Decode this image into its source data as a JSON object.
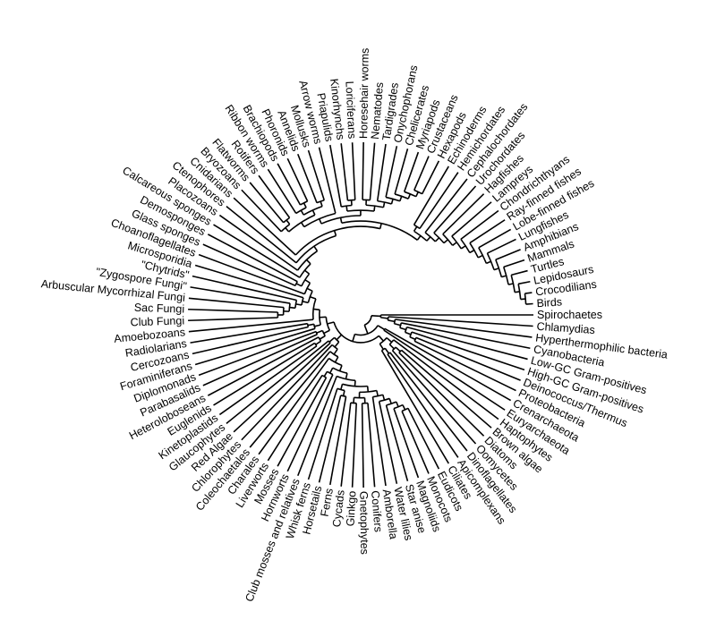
{
  "tree": [
    [
      "Spirochaetes",
      [
        "Chlamydias",
        [
          "Hyperthermophilic bacteria",
          [
            "Cyanobacteria",
            [
              "Low-GC Gram-positives",
              [
                "High-GC Gram-positives",
                [
                  "Deinococcus/Thermus",
                  "Proteobacteria"
                ]
              ]
            ]
          ]
        ]
      ]
    ],
    [
      [
        "Crenarchaeota",
        "Euryarchaeota"
      ],
      [
        [
          [
            "Haptophytes",
            [
              [
                "Brown algae",
                "Diatoms"
              ],
              "Oomycetes"
            ]
          ],
          [
            [
              "Dinoflagellates",
              "Apicomplexans"
            ],
            "Ciliates"
          ]
        ],
        [
          [
            [
              [
                [
                  [
                    [
                      [
                        [
                          [
                            [
                              [
                                [
                                  "Eudicots",
                                  "Monocots"
                                ],
                                "Magnoliids"
                              ],
                              "Star anise"
                            ],
                            "Water lilies"
                          ],
                          "Amborella"
                        ],
                        [
                          [
                            "Conifers",
                            "Gnetophytes"
                          ],
                          [
                            "Ginkgo",
                            "Cycads"
                          ]
                        ]
                      ],
                      [
                        [
                          "Ferns",
                          "Horsetails"
                        ],
                        "Whisk ferns"
                      ]
                    ],
                    "Club mosses and relatives"
                  ],
                  [
                    "Hornworts",
                    [
                      "Mosses",
                      "Liverworts"
                    ]
                  ]
                ],
                "Charales"
              ],
              "Coleochaetales"
            ],
            "Chlorophytes"
          ],
          [
            "Red Algae",
            "Glaucophytes"
          ]
        ],
        [
          [
            [
              [
                "Kinetoplastids",
                "Euglenids"
              ],
              "Heteroloboseans"
            ],
            [
              "Parabasalids",
              "Diplomonads"
            ]
          ],
          [
            [
              "Foraminiferans",
              [
                "Cercozoans",
                "Radiolarians"
              ]
            ],
            [
              "Amoebozoans",
              [
                [
                  [
                    [
                      [
                        [
                          "Club Fungi",
                          "Sac Fungi"
                        ],
                        "Arbuscular Mycorrhizal Fungi"
                      ],
                      "\"Zygospore Fungi\""
                    ],
                    "\"Chytrids\""
                  ],
                  "Microsporidia"
                ],
                [
                  "Choanoflagellates",
                  [
                    [
                      "Glass sponges",
                      "Demosponges"
                    ],
                    [
                      "Calcareous sponges",
                      [
                        "Placozoans",
                        [
                          "Ctenophores",
                          [
                            "Cnidarians",
                            [
                              [
                                [
                                  [
                                    [
                                      "Bryozoans",
                                      [
                                        "Flatworms",
                                        "Rotifers"
                                      ]
                                    ],
                                    [
                                      [
                                        "Ribbon worms",
                                        [
                                          "Brachiopods",
                                          "Phoronids"
                                        ]
                                      ],
                                      [
                                        "Annelids",
                                        "Mollusks"
                                      ]
                                    ]
                                  ],
                                  "Arrow worms"
                                ],
                                [
                                  [
                                    "Priapulids",
                                    [
                                      "Kinorhynchs",
                                      "Loriciferans"
                                    ]
                                  ],
                                  [
                                    [
                                      "Horesehair worms",
                                      "Nematodes"
                                    ],
                                    [
                                      "Tardigrades",
                                      [
                                        "Onychophorans",
                                        [
                                          "Chelicerates",
                                          [
                                            "Myriapods",
                                            [
                                              "Crustaceans",
                                              "Hexapods"
                                            ]
                                          ]
                                        ]
                                      ]
                                    ]
                                  ]
                                ]
                              ],
                              [
                                [
                                  "Echinoderms",
                                  "Hemichordates"
                                ],
                                [
                                  "Cephalochordates",
                                  [
                                    "Urochordates",
                                    [
                                      "Hagfishes",
                                      [
                                        "Lampreys",
                                        [
                                          "Chondrichthyans",
                                          [
                                            "Ray-finned fishes",
                                            [
                                              "Lobe-finned fishes",
                                              [
                                                "Lungfishes",
                                                [
                                                  "Amphibians",
                                                  [
                                                    "Mammals",
                                                    [
                                                      "Turtles",
                                                      [
                                                        "Lepidosaurs",
                                                        [
                                                          "Crocodilians",
                                                          "Birds"
                                                        ]
                                                      ]
                                                    ]
                                                  ]
                                                ]
                                              ]
                                            ]
                                          ]
                                        ]
                                      ]
                                    ]
                                  ]
                                ]
                              ]
                            ]
                          ]
                        ]
                      ]
                    ]
                  ]
                ]
              ]
            ]
          ]
        ]
      ]
    ]
  ],
  "colors": {
    "branch": "#000000",
    "label": "#000000",
    "background": "#ffffff"
  }
}
